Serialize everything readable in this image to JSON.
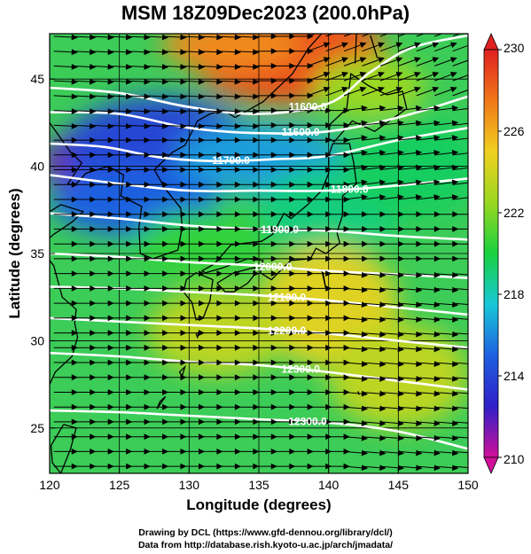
{
  "title": "MSM 18Z09Dec2023 (200.0hPa)",
  "credit_line1": "Drawing by DCL (https://www.gfd-dennou.org/library/dcl/)",
  "credit_line2": "Data from http://database.rish.kyoto-u.ac.jp/arch/jmadata/",
  "chart_data": {
    "type": "heatmap",
    "xlabel": "Longitude (degrees)",
    "ylabel": "Latitude  (degrees)",
    "xlim": [
      120,
      150
    ],
    "ylim": [
      22.4,
      47.6
    ],
    "xticks": [
      120,
      125,
      130,
      135,
      140,
      145,
      150
    ],
    "yticks": [
      25,
      30,
      35,
      40,
      45
    ],
    "colorbar": {
      "min": 210,
      "max": 230,
      "ticks": [
        210,
        214,
        218,
        222,
        226,
        230
      ],
      "colors": [
        "#d0109a",
        "#3020c8",
        "#1e60e0",
        "#18c8d8",
        "#18d040",
        "#9ad820",
        "#f0d020",
        "#f07818",
        "#e02020"
      ]
    },
    "contours": [
      {
        "level": "11600.0",
        "points": [
          [
            120,
            44.5
          ],
          [
            125,
            44.2
          ],
          [
            130,
            43.4
          ],
          [
            135,
            43.0
          ],
          [
            140,
            43.6
          ],
          [
            143,
            45.4
          ],
          [
            146,
            46.8
          ],
          [
            150,
            47.5
          ]
        ],
        "label_lon": 138.5
      },
      {
        "level": "11600.0",
        "points": [
          [
            120,
            43.1
          ],
          [
            125,
            43.0
          ],
          [
            130,
            42.2
          ],
          [
            135,
            41.9
          ],
          [
            140,
            42.0
          ],
          [
            145,
            42.8
          ],
          [
            150,
            44.0
          ]
        ],
        "label_lon": 138.0
      },
      {
        "level": "11700.0",
        "points": [
          [
            120,
            41.3
          ],
          [
            124,
            41.1
          ],
          [
            128,
            40.5
          ],
          [
            132,
            40.3
          ],
          [
            136,
            40.4
          ],
          [
            140,
            40.6
          ],
          [
            145,
            41.5
          ],
          [
            150,
            42.2
          ]
        ],
        "label_lon": 133.0
      },
      {
        "level": "11800.0",
        "points": [
          [
            120,
            39.5
          ],
          [
            125,
            39.0
          ],
          [
            130,
            38.6
          ],
          [
            135,
            38.6
          ],
          [
            140,
            38.6
          ],
          [
            145,
            38.9
          ],
          [
            150,
            39.3
          ]
        ],
        "label_lon": 141.5
      },
      {
        "level": "11900.0",
        "points": [
          [
            120,
            37.3
          ],
          [
            125,
            37.0
          ],
          [
            130,
            36.6
          ],
          [
            135,
            36.4
          ],
          [
            140,
            36.3
          ],
          [
            145,
            36.0
          ],
          [
            150,
            35.8
          ]
        ],
        "label_lon": 136.5
      },
      {
        "level": "12000.0",
        "points": [
          [
            120,
            35.0
          ],
          [
            125,
            34.8
          ],
          [
            130,
            34.5
          ],
          [
            135,
            34.3
          ],
          [
            140,
            34.0
          ],
          [
            145,
            33.8
          ],
          [
            150,
            33.6
          ]
        ],
        "label_lon": 136.0
      },
      {
        "level": "12100.0",
        "points": [
          [
            120,
            33.1
          ],
          [
            125,
            33.0
          ],
          [
            130,
            32.8
          ],
          [
            135,
            32.6
          ],
          [
            140,
            32.3
          ],
          [
            145,
            31.9
          ],
          [
            150,
            31.5
          ]
        ],
        "label_lon": 137.0
      },
      {
        "level": "12200.0",
        "points": [
          [
            120,
            31.3
          ],
          [
            125,
            31.1
          ],
          [
            130,
            30.9
          ],
          [
            135,
            30.7
          ],
          [
            140,
            30.4
          ],
          [
            145,
            30.0
          ],
          [
            150,
            29.6
          ]
        ],
        "label_lon": 137.0
      },
      {
        "level": "12300.0",
        "points": [
          [
            120,
            29.3
          ],
          [
            125,
            29.1
          ],
          [
            130,
            28.8
          ],
          [
            135,
            28.6
          ],
          [
            140,
            28.2
          ],
          [
            145,
            27.7
          ],
          [
            150,
            27.2
          ]
        ],
        "label_lon": 138.0
      },
      {
        "level": "12300.0",
        "points": [
          [
            120,
            26.0
          ],
          [
            125,
            25.9
          ],
          [
            130,
            25.7
          ],
          [
            135,
            25.5
          ],
          [
            140,
            25.3
          ],
          [
            145,
            24.8
          ],
          [
            150,
            23.8
          ]
        ],
        "label_lon": 138.5
      }
    ],
    "temperature_fields": [
      {
        "lon": 137.0,
        "lat": 46.5,
        "value": 228.5,
        "rx": 7.0,
        "ry": 3.0
      },
      {
        "lon": 133.0,
        "lat": 47.0,
        "value": 227.0,
        "rx": 5.0,
        "ry": 1.5
      },
      {
        "lon": 143.0,
        "lat": 44.5,
        "value": 222.5,
        "rx": 4.0,
        "ry": 1.8
      },
      {
        "lon": 123.0,
        "lat": 40.2,
        "value": 211.5,
        "rx": 3.5,
        "ry": 2.0
      },
      {
        "lon": 128.0,
        "lat": 41.0,
        "value": 214.0,
        "rx": 7.0,
        "ry": 3.0
      },
      {
        "lon": 135.0,
        "lat": 40.5,
        "value": 216.5,
        "rx": 6.0,
        "ry": 2.0
      },
      {
        "lon": 126.0,
        "lat": 38.0,
        "value": 215.0,
        "rx": 6.0,
        "ry": 2.0
      },
      {
        "lon": 140.0,
        "lat": 37.5,
        "value": 219.0,
        "rx": 5.0,
        "ry": 2.5
      },
      {
        "lon": 146.0,
        "lat": 40.0,
        "value": 219.5,
        "rx": 5.0,
        "ry": 3.0
      },
      {
        "lon": 131.0,
        "lat": 35.5,
        "value": 220.5,
        "rx": 5.0,
        "ry": 2.0
      },
      {
        "lon": 140.0,
        "lat": 32.0,
        "value": 224.5,
        "rx": 5.0,
        "ry": 3.5
      },
      {
        "lon": 132.0,
        "lat": 30.5,
        "value": 223.5,
        "rx": 5.0,
        "ry": 2.5
      },
      {
        "lon": 145.0,
        "lat": 28.0,
        "value": 223.5,
        "rx": 5.0,
        "ry": 3.0
      }
    ],
    "wind": {
      "grid_lon_step": 1.3,
      "grid_lat_step": 0.85
    }
  }
}
